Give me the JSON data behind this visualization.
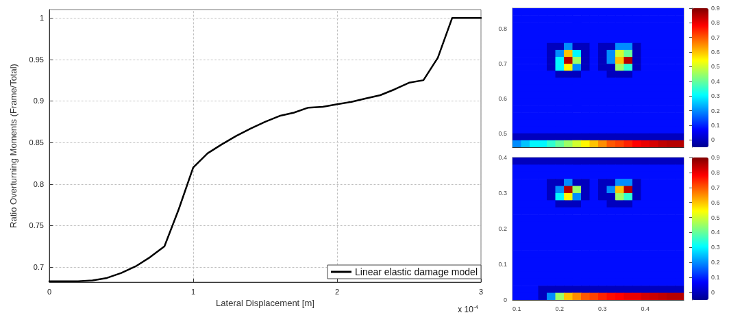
{
  "chart_data": [
    {
      "type": "line",
      "xlabel": "Lateral Displacement [m]",
      "ylabel": "Ratio Overturning Moments (Frame/Total)",
      "annotations": [
        "x 10$^{-4}$"
      ],
      "series": [
        {
          "name": "Linear elastic damage model",
          "color": "#000000",
          "x": [
            0,
            0.2,
            0.3,
            0.4,
            0.5,
            0.6,
            0.7,
            0.8,
            0.9,
            1.0,
            1.1,
            1.2,
            1.3,
            1.4,
            1.5,
            1.6,
            1.7,
            1.8,
            1.9,
            2.0,
            2.1,
            2.2,
            2.3,
            2.4,
            2.5,
            2.6,
            2.7,
            2.8,
            3.0
          ],
          "values": [
            0.683,
            0.683,
            0.684,
            0.687,
            0.693,
            0.701,
            0.712,
            0.725,
            0.77,
            0.82,
            0.837,
            0.848,
            0.858,
            0.867,
            0.875,
            0.882,
            0.886,
            0.892,
            0.893,
            0.896,
            0.899,
            0.903,
            0.907,
            0.914,
            0.922,
            0.925,
            0.952,
            1.0,
            1.0
          ]
        }
      ],
      "xlim": [
        0,
        3
      ],
      "xticks": [
        0,
        1,
        2,
        3
      ],
      "ylim": [
        0.682,
        1.01
      ],
      "yticks": [
        0.7,
        0.75,
        0.8,
        0.85,
        0.9,
        0.95,
        1
      ],
      "grid": true,
      "legend": "bottom right",
      "marker": "none",
      "line_style": "solid"
    },
    {
      "type": "heatmap",
      "xlim": [
        0.09,
        0.49
      ],
      "xticks": [
        0.1,
        0.2,
        0.3,
        0.4
      ],
      "ylim": [
        0.46,
        0.86
      ],
      "yticks": [
        0.5,
        0.6,
        0.7,
        0.8
      ],
      "tick_labels": "y",
      "clim": [
        -0.05,
        0.9
      ],
      "cticks": [
        0,
        0.1,
        0.2,
        0.3,
        0.4,
        0.5,
        0.6,
        0.7,
        0.8,
        0.9
      ],
      "cells": [
        [
          0.08,
          0.08,
          0.08,
          0.08,
          0.08,
          0.08,
          0.08,
          0.08,
          0.08,
          0.08,
          0.08,
          0.08,
          0.08,
          0.08,
          0.08,
          0.08,
          0.08,
          0.08,
          0.08,
          0.08
        ],
        [
          0.08,
          0.08,
          0.08,
          0.08,
          0.08,
          0.08,
          0.08,
          0.08,
          0.08,
          0.08,
          0.08,
          0.08,
          0.08,
          0.08,
          0.08,
          0.08,
          0.08,
          0.08,
          0.08,
          0.08
        ],
        [
          0.08,
          0.08,
          0.08,
          0.08,
          0.08,
          0.08,
          0.08,
          0.08,
          0.08,
          0.08,
          0.08,
          0.08,
          0.08,
          0.08,
          0.08,
          0.08,
          0.08,
          0.08,
          0.08,
          0.08
        ],
        [
          0.08,
          0.08,
          0.08,
          0.08,
          0.08,
          0.08,
          0.08,
          0.08,
          0.08,
          0.08,
          0.08,
          0.08,
          0.08,
          0.08,
          0.08,
          0.08,
          0.08,
          0.08,
          0.08,
          0.08
        ],
        [
          0.08,
          0.08,
          0.08,
          0.08,
          0.08,
          0.08,
          0.08,
          0.08,
          0.08,
          0.08,
          0.08,
          0.08,
          0.08,
          0.08,
          0.08,
          0.08,
          0.08,
          0.08,
          0.08,
          0.08
        ],
        [
          0.08,
          0.08,
          0.08,
          0.08,
          0,
          0,
          0.2,
          0,
          0,
          0.08,
          0,
          0,
          0.2,
          0.2,
          0,
          0.08,
          0.08,
          0.08,
          0.08,
          0.08
        ],
        [
          0.08,
          0.08,
          0.08,
          0.08,
          0,
          0.2,
          0.6,
          0.3,
          0,
          0.08,
          0,
          0.2,
          0.5,
          0.4,
          0,
          0.08,
          0.08,
          0.08,
          0.08,
          0.08
        ],
        [
          0.08,
          0.08,
          0.08,
          0.08,
          0,
          0.3,
          0.85,
          0.45,
          0,
          0.08,
          0,
          0.2,
          0.6,
          0.85,
          0,
          0.08,
          0.08,
          0.08,
          0.08,
          0.08
        ],
        [
          0.08,
          0.08,
          0.08,
          0.08,
          0,
          0.3,
          0.55,
          0.2,
          0,
          0.08,
          0,
          0,
          0.45,
          0.35,
          0,
          0.08,
          0.08,
          0.08,
          0.08,
          0.08
        ],
        [
          0.08,
          0.08,
          0.08,
          0.08,
          0.08,
          0,
          0,
          0,
          0.08,
          0.08,
          0.08,
          0,
          0,
          0,
          0.08,
          0.08,
          0.08,
          0.08,
          0.08,
          0.08
        ],
        [
          0.08,
          0.08,
          0.08,
          0.08,
          0.08,
          0.08,
          0.08,
          0.08,
          0.08,
          0.08,
          0.08,
          0.08,
          0.08,
          0.08,
          0.08,
          0.08,
          0.08,
          0.08,
          0.08,
          0.08
        ],
        [
          0.08,
          0.08,
          0.08,
          0.08,
          0.08,
          0.08,
          0.08,
          0.08,
          0.08,
          0.08,
          0.08,
          0.08,
          0.08,
          0.08,
          0.08,
          0.08,
          0.08,
          0.08,
          0.08,
          0.08
        ],
        [
          0.08,
          0.08,
          0.08,
          0.08,
          0.08,
          0.08,
          0.08,
          0.08,
          0.08,
          0.08,
          0.08,
          0.08,
          0.08,
          0.08,
          0.08,
          0.08,
          0.08,
          0.08,
          0.08,
          0.08
        ],
        [
          0.08,
          0.08,
          0.08,
          0.08,
          0.08,
          0.08,
          0.08,
          0.08,
          0.08,
          0.08,
          0.08,
          0.08,
          0.08,
          0.08,
          0.08,
          0.08,
          0.08,
          0.08,
          0.08,
          0.08
        ],
        [
          0.08,
          0.08,
          0.08,
          0.08,
          0.08,
          0.08,
          0.08,
          0.08,
          0.08,
          0.08,
          0.08,
          0.08,
          0.08,
          0.08,
          0.08,
          0.08,
          0.08,
          0.08,
          0.08,
          0.08
        ],
        [
          0.08,
          0.08,
          0.08,
          0.08,
          0.08,
          0.08,
          0.08,
          0.08,
          0.08,
          0.08,
          0.08,
          0.08,
          0.08,
          0.08,
          0.08,
          0.08,
          0.08,
          0.08,
          0.08,
          0.08
        ],
        [
          0.08,
          0.08,
          0.08,
          0.08,
          0.08,
          0.08,
          0.08,
          0.08,
          0.08,
          0.08,
          0.08,
          0.08,
          0.08,
          0.08,
          0.08,
          0.08,
          0.08,
          0.08,
          0.08,
          0.08
        ],
        [
          0.08,
          0.08,
          0.08,
          0.08,
          0.08,
          0.08,
          0.08,
          0.08,
          0.08,
          0.08,
          0.08,
          0.08,
          0.08,
          0.08,
          0.08,
          0.08,
          0.08,
          0.08,
          0.08,
          0.08
        ],
        [
          0,
          0,
          0,
          0,
          0,
          0,
          0,
          0,
          0,
          0,
          0,
          0,
          0,
          0,
          0,
          0,
          0,
          0,
          0,
          0
        ],
        [
          0.2,
          0.25,
          0.3,
          0.3,
          0.35,
          0.4,
          0.45,
          0.5,
          0.55,
          0.6,
          0.65,
          0.7,
          0.72,
          0.75,
          0.78,
          0.8,
          0.82,
          0.84,
          0.85,
          0.85
        ]
      ]
    },
    {
      "type": "heatmap",
      "xlim": [
        0.09,
        0.49
      ],
      "xticks": [
        0.1,
        0.2,
        0.3,
        0.4
      ],
      "ylim": [
        0,
        0.4
      ],
      "yticks": [
        0,
        0.1,
        0.2,
        0.3,
        0.4
      ],
      "clim": [
        -0.05,
        0.9
      ],
      "cticks": [
        0,
        0.1,
        0.2,
        0.3,
        0.4,
        0.5,
        0.6,
        0.7,
        0.8,
        0.9
      ],
      "cells": [
        [
          0,
          0,
          0,
          0,
          0,
          0,
          0,
          0,
          0,
          0,
          0,
          0,
          0,
          0,
          0,
          0,
          0,
          0,
          0,
          0
        ],
        [
          0.08,
          0.08,
          0.08,
          0.08,
          0.08,
          0.08,
          0.08,
          0.08,
          0.08,
          0.08,
          0.08,
          0.08,
          0.08,
          0.08,
          0.08,
          0.08,
          0.08,
          0.08,
          0.08,
          0.08
        ],
        [
          0.08,
          0.08,
          0.08,
          0.08,
          0.08,
          0.08,
          0.08,
          0.08,
          0.08,
          0.08,
          0.08,
          0.08,
          0.08,
          0.08,
          0.08,
          0.08,
          0.08,
          0.08,
          0.08,
          0.08
        ],
        [
          0.08,
          0.08,
          0.08,
          0.08,
          0,
          0,
          0.2,
          0,
          0,
          0.08,
          0,
          0,
          0.2,
          0.2,
          0,
          0.08,
          0.08,
          0.08,
          0.08,
          0.08
        ],
        [
          0.08,
          0.08,
          0.08,
          0.08,
          0,
          0.2,
          0.85,
          0.45,
          0,
          0.08,
          0,
          0.2,
          0.6,
          0.85,
          0,
          0.08,
          0.08,
          0.08,
          0.08,
          0.08
        ],
        [
          0.08,
          0.08,
          0.08,
          0.08,
          0,
          0.3,
          0.55,
          0.2,
          0,
          0.08,
          0,
          0,
          0.45,
          0.35,
          0,
          0.08,
          0.08,
          0.08,
          0.08,
          0.08
        ],
        [
          0.08,
          0.08,
          0.08,
          0.08,
          0.08,
          0,
          0,
          0,
          0.08,
          0.08,
          0.08,
          0,
          0,
          0,
          0.08,
          0.08,
          0.08,
          0.08,
          0.08,
          0.08
        ],
        [
          0.08,
          0.08,
          0.08,
          0.08,
          0.08,
          0.08,
          0.08,
          0.08,
          0.08,
          0.08,
          0.08,
          0.08,
          0.08,
          0.08,
          0.08,
          0.08,
          0.08,
          0.08,
          0.08,
          0.08
        ],
        [
          0.08,
          0.08,
          0.08,
          0.08,
          0.08,
          0.08,
          0.08,
          0.08,
          0.08,
          0.08,
          0.08,
          0.08,
          0.08,
          0.08,
          0.08,
          0.08,
          0.08,
          0.08,
          0.08,
          0.08
        ],
        [
          0.08,
          0.08,
          0.08,
          0.08,
          0.08,
          0.08,
          0.08,
          0.08,
          0.08,
          0.08,
          0.08,
          0.08,
          0.08,
          0.08,
          0.08,
          0.08,
          0.08,
          0.08,
          0.08,
          0.08
        ],
        [
          0.08,
          0.08,
          0.08,
          0.08,
          0.08,
          0.08,
          0.08,
          0.08,
          0.08,
          0.08,
          0.08,
          0.08,
          0.08,
          0.08,
          0.08,
          0.08,
          0.08,
          0.08,
          0.08,
          0.08
        ],
        [
          0.08,
          0.08,
          0.08,
          0.08,
          0.08,
          0.08,
          0.08,
          0.08,
          0.08,
          0.08,
          0.08,
          0.08,
          0.08,
          0.08,
          0.08,
          0.08,
          0.08,
          0.08,
          0.08,
          0.08
        ],
        [
          0.08,
          0.08,
          0.08,
          0.08,
          0.08,
          0.08,
          0.08,
          0.08,
          0.08,
          0.08,
          0.08,
          0.08,
          0.08,
          0.08,
          0.08,
          0.08,
          0.08,
          0.08,
          0.08,
          0.08
        ],
        [
          0.08,
          0.08,
          0.08,
          0.08,
          0.08,
          0.08,
          0.08,
          0.08,
          0.08,
          0.08,
          0.08,
          0.08,
          0.08,
          0.08,
          0.08,
          0.08,
          0.08,
          0.08,
          0.08,
          0.08
        ],
        [
          0.08,
          0.08,
          0.08,
          0.08,
          0.08,
          0.08,
          0.08,
          0.08,
          0.08,
          0.08,
          0.08,
          0.08,
          0.08,
          0.08,
          0.08,
          0.08,
          0.08,
          0.08,
          0.08,
          0.08
        ],
        [
          0.08,
          0.08,
          0.08,
          0.08,
          0.08,
          0.08,
          0.08,
          0.08,
          0.08,
          0.08,
          0.08,
          0.08,
          0.08,
          0.08,
          0.08,
          0.08,
          0.08,
          0.08,
          0.08,
          0.08
        ],
        [
          0.08,
          0.08,
          0.08,
          0.08,
          0.08,
          0.08,
          0.08,
          0.08,
          0.08,
          0.08,
          0.08,
          0.08,
          0.08,
          0.08,
          0.08,
          0.08,
          0.08,
          0.08,
          0.08,
          0.08
        ],
        [
          0.08,
          0.08,
          0.08,
          0.08,
          0.08,
          0.08,
          0.08,
          0.08,
          0.08,
          0.08,
          0.08,
          0.08,
          0.08,
          0.08,
          0.08,
          0.08,
          0.08,
          0.08,
          0.08,
          0.08
        ],
        [
          0.08,
          0.08,
          0.08,
          0,
          0,
          0,
          0,
          0,
          0,
          0,
          0,
          0,
          0,
          0,
          0,
          0,
          0,
          0,
          0,
          0
        ],
        [
          0.08,
          0.08,
          0.08,
          0,
          0.2,
          0.45,
          0.6,
          0.65,
          0.7,
          0.72,
          0.75,
          0.77,
          0.78,
          0.8,
          0.8,
          0.82,
          0.83,
          0.84,
          0.85,
          0.85
        ]
      ]
    }
  ]
}
